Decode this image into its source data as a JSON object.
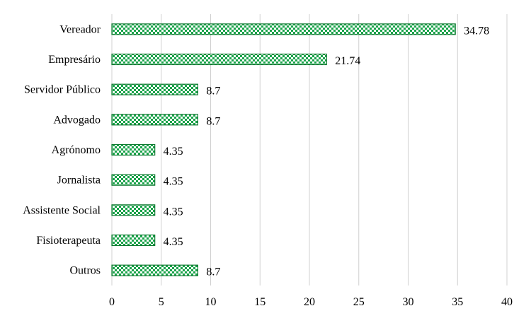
{
  "chart_data": {
    "type": "bar",
    "orientation": "horizontal",
    "categories": [
      "Vereador",
      "Empresário",
      "Servidor Público",
      "Advogado",
      "Agrónomo",
      "Jornalista",
      "Assistente Social",
      "Fisioterapeuta",
      "Outros"
    ],
    "values": [
      34.78,
      21.74,
      8.7,
      8.7,
      4.35,
      4.35,
      4.35,
      4.35,
      8.7
    ],
    "value_labels": [
      "34.78",
      "21.74",
      "8.7",
      "8.7",
      "4.35",
      "4.35",
      "4.35",
      "4.35",
      "8.7"
    ],
    "xlim": [
      0,
      40
    ],
    "xticks": [
      0,
      5,
      10,
      15,
      20,
      25,
      30,
      35,
      40
    ],
    "title": "",
    "xlabel": "",
    "ylabel": "",
    "grid": "vertical",
    "legend": "none",
    "colors": {
      "bar_fill": "#1aa34a",
      "bar_pattern": "#ffffff",
      "bar_border": "#0e7a30",
      "grid": "#d0d0d0",
      "text": "#000000"
    }
  }
}
